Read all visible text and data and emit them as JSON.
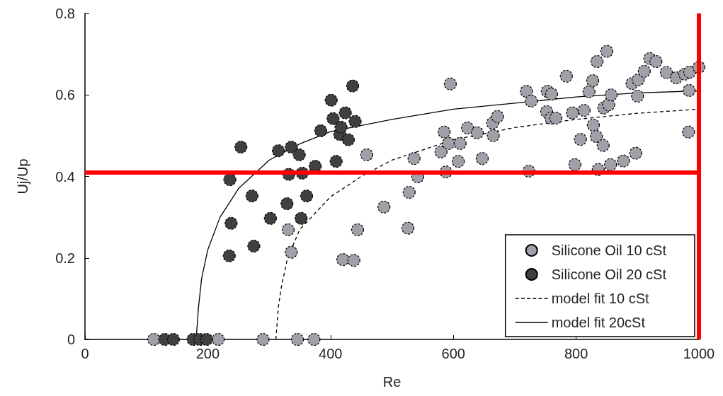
{
  "chart_data": {
    "type": "scatter",
    "xlabel": "Re",
    "ylabel": "Uj/Up",
    "xlim": [
      0,
      1000
    ],
    "xticks": [
      0,
      200,
      400,
      600,
      800,
      1000
    ],
    "ylim": [
      0,
      0.8
    ],
    "yticks": [
      0,
      0.2,
      0.4,
      0.6,
      0.8
    ],
    "grid": false,
    "legend": "bottom right",
    "series": [
      {
        "name": "Silicone Oil 10 cSt",
        "marker": "circle",
        "color": "#a0a0a8",
        "x": [
          112,
          217,
          290,
          346,
          373,
          331,
          336,
          420,
          438,
          444,
          459,
          487,
          526,
          528,
          536,
          542,
          580,
          588,
          592,
          595,
          585,
          608,
          611,
          623,
          639,
          647,
          664,
          665,
          672,
          719,
          723,
          727,
          753,
          752,
          759,
          760,
          767,
          784,
          794,
          798,
          807,
          813,
          821,
          827,
          828,
          833,
          834,
          836,
          844,
          845,
          850,
          853,
          856,
          857,
          877,
          891,
          897,
          900,
          901,
          911,
          920,
          930,
          947,
          963,
          977,
          983,
          984,
          985,
          1000
        ],
        "values": [
          0,
          0,
          0,
          0,
          0,
          0.269,
          0.214,
          0.196,
          0.194,
          0.269,
          0.453,
          0.325,
          0.273,
          0.361,
          0.444,
          0.399,
          0.46,
          0.411,
          0.481,
          0.627,
          0.509,
          0.437,
          0.481,
          0.519,
          0.507,
          0.444,
          0.531,
          0.5,
          0.547,
          0.609,
          0.413,
          0.585,
          0.609,
          0.559,
          0.543,
          0.602,
          0.543,
          0.646,
          0.556,
          0.429,
          0.491,
          0.562,
          0.608,
          0.635,
          0.526,
          0.498,
          0.682,
          0.417,
          0.476,
          0.568,
          0.707,
          0.576,
          0.429,
          0.6,
          0.438,
          0.628,
          0.457,
          0.597,
          0.637,
          0.658,
          0.689,
          0.682,
          0.655,
          0.642,
          0.651,
          0.509,
          0.611,
          0.656,
          0.668
        ]
      },
      {
        "name": "Silicone Oil 20 cSt",
        "marker": "circle",
        "color": "#404040",
        "x": [
          130,
          144,
          176,
          187,
          198,
          235,
          236,
          238,
          254,
          272,
          275,
          302,
          315,
          329,
          332,
          336,
          349,
          352,
          354,
          361,
          375,
          384,
          401,
          404,
          409,
          415,
          417,
          424,
          429,
          436,
          440
        ],
        "values": [
          0,
          0,
          0,
          0,
          0,
          0.205,
          0.392,
          0.285,
          0.472,
          0.352,
          0.229,
          0.297,
          0.463,
          0.333,
          0.405,
          0.472,
          0.453,
          0.297,
          0.408,
          0.352,
          0.425,
          0.512,
          0.587,
          0.542,
          0.437,
          0.503,
          0.521,
          0.556,
          0.49,
          0.622,
          0.535
        ]
      },
      {
        "name": "model fit 10 cSt",
        "type": "line",
        "marker": "none",
        "line_style": "dashed",
        "color": "#000000",
        "x": [
          311,
          315,
          320,
          330,
          350,
          400,
          450,
          500,
          600,
          700,
          800,
          900,
          1000
        ],
        "values": [
          0,
          0.08,
          0.13,
          0.2,
          0.27,
          0.35,
          0.4,
          0.44,
          0.49,
          0.52,
          0.54,
          0.555,
          0.565
        ]
      },
      {
        "name": "model fit 20cSt",
        "type": "line",
        "marker": "none",
        "line_style": "solid",
        "color": "#000000",
        "x": [
          181,
          185,
          190,
          200,
          220,
          250,
          300,
          350,
          400,
          500,
          600,
          700,
          800,
          900,
          1000
        ],
        "values": [
          0,
          0.08,
          0.15,
          0.22,
          0.3,
          0.37,
          0.44,
          0.48,
          0.51,
          0.54,
          0.565,
          0.58,
          0.595,
          0.605,
          0.61
        ]
      }
    ],
    "ref_lines": [
      {
        "axis": "y",
        "value": 0.41,
        "color": "#ff0000"
      },
      {
        "axis": "x",
        "value": 1000,
        "color": "#ff0000"
      }
    ]
  }
}
